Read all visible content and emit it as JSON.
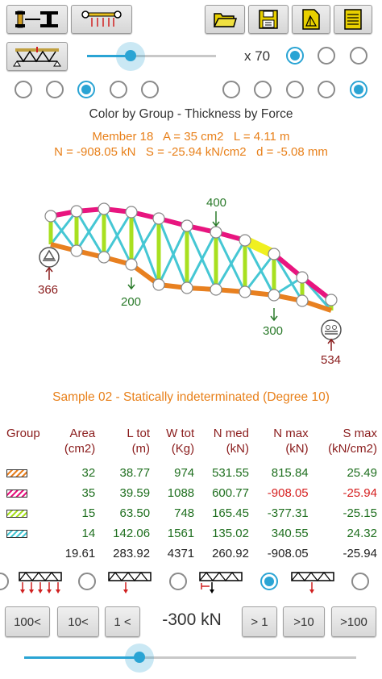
{
  "toolbar": {
    "left_buttons": [
      "beam-section-icon",
      "load-distribution-icon",
      "truss-support-icon"
    ],
    "right_buttons": [
      "open-folder-icon",
      "save-disk-icon",
      "export-drawing-icon",
      "report-notes-icon"
    ]
  },
  "scale": {
    "label": "x 70",
    "slider_fraction": 0.34,
    "selected_option": 1
  },
  "view_options": {
    "left_selected": 3,
    "right_selected": 5
  },
  "color_mode": "Color by Group - Thickness by Force",
  "member_info": {
    "line1": "Member 18   A = 35 cm2   L = 4.11 m",
    "line2": "N = -908.05 kN   S = -25.94 kN/cm2   d = -5.08 mm"
  },
  "loads": {
    "top": "400",
    "mid_left": "200",
    "mid_right": "300"
  },
  "reactions": {
    "left": "366",
    "right": "534"
  },
  "sample_title": "Sample 02 - Statically indeterminated (Degree 10)",
  "table": {
    "headers": [
      {
        "l1": "Group",
        "l2": ""
      },
      {
        "l1": "Area",
        "l2": "(cm2)"
      },
      {
        "l1": "L tot",
        "l2": "(m)"
      },
      {
        "l1": "W tot",
        "l2": "(Kg)"
      },
      {
        "l1": "N med",
        "l2": "(kN)"
      },
      {
        "l1": "N max",
        "l2": "(kN)"
      },
      {
        "l1": "S max",
        "l2": "(kN/cm2)"
      }
    ],
    "rows": [
      {
        "color": "#e88020",
        "area": "32",
        "ltot": "38.77",
        "wtot": "974",
        "nmed": "531.55",
        "nmax": "815.84",
        "smax": "25.49"
      },
      {
        "color": "#e8157f",
        "area": "35",
        "ltot": "39.59",
        "wtot": "1088",
        "nmed": "600.77",
        "nmax": "-908.05",
        "smax": "-25.94"
      },
      {
        "color": "#a8e020",
        "area": "15",
        "ltot": "63.50",
        "wtot": "748",
        "nmed": "165.45",
        "nmax": "-377.31",
        "smax": "-25.15"
      },
      {
        "color": "#45c7d4",
        "area": "14",
        "ltot": "142.06",
        "wtot": "1561",
        "nmed": "135.02",
        "nmax": "340.55",
        "smax": "24.32"
      }
    ],
    "totals": {
      "area": "19.61",
      "ltot": "283.92",
      "wtot": "4371",
      "nmed": "260.92",
      "nmax": "-908.05",
      "smax": "-25.94"
    }
  },
  "load_mode": {
    "selected": 4
  },
  "load_control": {
    "buttons": [
      "100<",
      "10<",
      "1 <",
      "> 1",
      ">10",
      ">100"
    ],
    "value": "-300 kN",
    "slider_fraction": 0.35
  }
}
